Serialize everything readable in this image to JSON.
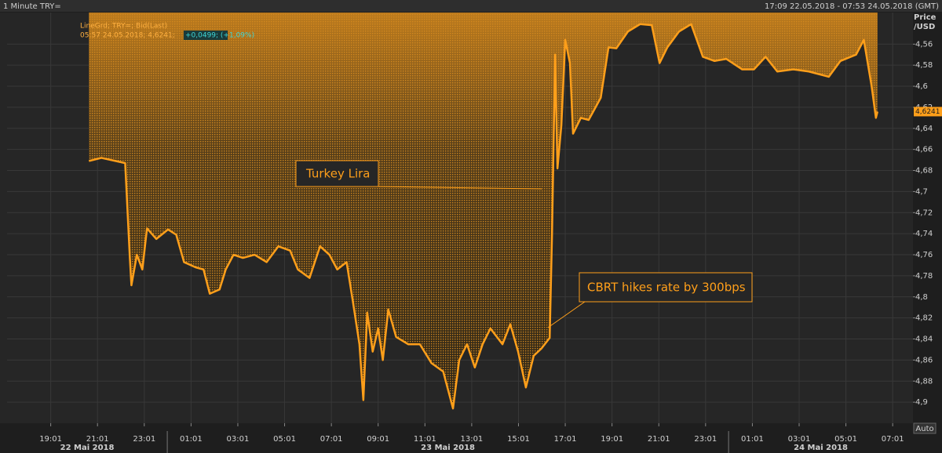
{
  "chart_data": {
    "type": "line",
    "title": "1 Minute TRY=",
    "time_range": "17:09 22.05.2018 - 07:53 24.05.2018 (GMT)",
    "y_label": "Price /USD",
    "y_inverted": true,
    "legend_info": [
      "05:57 24.05.2018; 4,6241;",
      "+0,0499; (+1,09%)"
    ],
    "last_value": {
      "value": 4.6241,
      "label": "4,6241"
    },
    "auto_button": "Auto",
    "annotations": [
      {
        "text": "Turkey Lira"
      },
      {
        "text": "CBRT hikes rate by 300bps"
      }
    ],
    "xlim": [
      "2018-05-22T17:09",
      "2018-05-24T07:53"
    ],
    "xticks": [
      {
        "value": "2018-05-22T19:01",
        "label": "19:01"
      },
      {
        "value": "2018-05-22T21:01",
        "label": "21:01"
      },
      {
        "value": "2018-05-22T23:01",
        "label": "23:01"
      },
      {
        "value": "2018-05-23T01:01",
        "label": "01:01"
      },
      {
        "value": "2018-05-23T03:01",
        "label": "03:01"
      },
      {
        "value": "2018-05-23T05:01",
        "label": "05:01"
      },
      {
        "value": "2018-05-23T07:01",
        "label": "07:01"
      },
      {
        "value": "2018-05-23T09:01",
        "label": "09:01"
      },
      {
        "value": "2018-05-23T11:01",
        "label": "11:01"
      },
      {
        "value": "2018-05-23T13:01",
        "label": "13:01"
      },
      {
        "value": "2018-05-23T15:01",
        "label": "15:01"
      },
      {
        "value": "2018-05-23T17:01",
        "label": "17:01"
      },
      {
        "value": "2018-05-23T19:01",
        "label": "19:01"
      },
      {
        "value": "2018-05-23T21:01",
        "label": "21:01"
      },
      {
        "value": "2018-05-23T23:01",
        "label": "23:01"
      },
      {
        "value": "2018-05-24T01:01",
        "label": "01:01"
      },
      {
        "value": "2018-05-24T03:01",
        "label": "03:01"
      },
      {
        "value": "2018-05-24T05:01",
        "label": "05:01"
      },
      {
        "value": "2018-05-24T07:01",
        "label": "07:01"
      }
    ],
    "date_labels": [
      {
        "value": "2018-05-22",
        "label": "22 Mai 2018"
      },
      {
        "value": "2018-05-23",
        "label": "23 Mai 2018"
      },
      {
        "value": "2018-05-24",
        "label": "24 Mai 2018"
      }
    ],
    "ylim": [
      4.53,
      4.92
    ],
    "yticks": [
      {
        "value": 4.56,
        "label": "4,56"
      },
      {
        "value": 4.58,
        "label": "4,58"
      },
      {
        "value": 4.6,
        "label": "4,6"
      },
      {
        "value": 4.62,
        "label": "4,62"
      },
      {
        "value": 4.64,
        "label": "4,64"
      },
      {
        "value": 4.66,
        "label": "4,66"
      },
      {
        "value": 4.68,
        "label": "4,68"
      },
      {
        "value": 4.7,
        "label": "4,7"
      },
      {
        "value": 4.72,
        "label": "4,72"
      },
      {
        "value": 4.74,
        "label": "4,74"
      },
      {
        "value": 4.76,
        "label": "4,76"
      },
      {
        "value": 4.78,
        "label": "4,78"
      },
      {
        "value": 4.8,
        "label": "4,8"
      },
      {
        "value": 4.82,
        "label": "4,82"
      },
      {
        "value": 4.84,
        "label": "4,84"
      },
      {
        "value": 4.86,
        "label": "4,86"
      },
      {
        "value": 4.88,
        "label": "4,88"
      },
      {
        "value": 4.9,
        "label": "4,9"
      }
    ],
    "grid": true,
    "x": [
      "2018-05-22T20:39",
      "2018-05-22T21:11",
      "2018-05-22T22:12",
      "2018-05-22T22:24",
      "2018-05-22T22:28",
      "2018-05-22T22:42",
      "2018-05-22T22:56",
      "2018-05-22T23:08",
      "2018-05-22T23:32",
      "2018-05-23T00:02",
      "2018-05-23T00:23",
      "2018-05-23T00:43",
      "2018-05-23T01:13",
      "2018-05-23T01:33",
      "2018-05-23T01:49",
      "2018-05-23T02:14",
      "2018-05-23T02:30",
      "2018-05-23T02:50",
      "2018-05-23T03:14",
      "2018-05-23T03:44",
      "2018-05-23T04:15",
      "2018-05-23T04:45",
      "2018-05-23T05:15",
      "2018-05-23T05:35",
      "2018-05-23T06:05",
      "2018-05-23T06:32",
      "2018-05-23T06:56",
      "2018-05-23T07:16",
      "2018-05-23T07:40",
      "2018-05-23T07:56",
      "2018-05-23T08:13",
      "2018-05-23T08:23",
      "2018-05-23T08:33",
      "2018-05-23T08:47",
      "2018-05-23T09:01",
      "2018-05-23T09:13",
      "2018-05-23T09:27",
      "2018-05-23T09:47",
      "2018-05-23T10:18",
      "2018-05-23T10:48",
      "2018-05-23T11:18",
      "2018-05-23T11:48",
      "2018-05-23T12:13",
      "2018-05-23T12:29",
      "2018-05-23T12:49",
      "2018-05-23T13:09",
      "2018-05-23T13:29",
      "2018-05-23T13:49",
      "2018-05-23T14:20",
      "2018-05-23T14:40",
      "2018-05-23T15:00",
      "2018-05-23T15:20",
      "2018-05-23T15:40",
      "2018-05-23T16:00",
      "2018-05-23T16:21",
      "2018-05-23T16:27",
      "2018-05-23T16:35",
      "2018-05-23T16:41",
      "2018-05-23T16:51",
      "2018-05-23T17:01",
      "2018-05-23T17:13",
      "2018-05-23T17:21",
      "2018-05-23T17:41",
      "2018-05-23T18:01",
      "2018-05-23T18:32",
      "2018-05-23T18:52",
      "2018-05-23T19:12",
      "2018-05-23T19:42",
      "2018-05-23T20:13",
      "2018-05-23T20:43",
      "2018-05-23T21:03",
      "2018-05-23T21:23",
      "2018-05-23T21:53",
      "2018-05-23T22:24",
      "2018-05-23T22:54",
      "2018-05-23T23:24",
      "2018-05-23T23:54",
      "2018-05-24T00:35",
      "2018-05-24T01:05",
      "2018-05-24T01:35",
      "2018-05-24T02:05",
      "2018-05-24T02:46",
      "2018-05-24T03:26",
      "2018-05-24T04:17",
      "2018-05-24T04:47",
      "2018-05-24T05:27",
      "2018-05-24T05:47",
      "2018-05-24T06:07",
      "2018-05-24T06:18",
      "2018-05-24T06:22"
    ],
    "series": [
      {
        "name": "LineGrd; TRY=; Bid(Last)",
        "color": "#ff9f1a",
        "values": [
          4.671,
          4.668,
          4.673,
          4.763,
          4.789,
          4.76,
          4.774,
          4.735,
          4.745,
          4.736,
          4.741,
          4.767,
          4.772,
          4.774,
          4.797,
          4.793,
          4.774,
          4.76,
          4.763,
          4.76,
          4.767,
          4.752,
          4.756,
          4.774,
          4.782,
          4.752,
          4.76,
          4.774,
          4.767,
          4.804,
          4.845,
          4.898,
          4.815,
          4.852,
          4.83,
          4.86,
          4.812,
          4.838,
          4.845,
          4.845,
          4.863,
          4.871,
          4.906,
          4.86,
          4.845,
          4.867,
          4.845,
          4.83,
          4.845,
          4.826,
          4.852,
          4.886,
          4.856,
          4.849,
          4.839,
          4.741,
          4.57,
          4.678,
          4.637,
          4.556,
          4.578,
          4.645,
          4.63,
          4.632,
          4.611,
          4.563,
          4.564,
          4.548,
          4.541,
          4.542,
          4.578,
          4.563,
          4.548,
          4.541,
          4.572,
          4.576,
          4.574,
          4.584,
          4.584,
          4.572,
          4.586,
          4.584,
          4.586,
          4.591,
          4.576,
          4.57,
          4.556,
          4.6,
          4.63,
          4.6241
        ]
      }
    ]
  }
}
